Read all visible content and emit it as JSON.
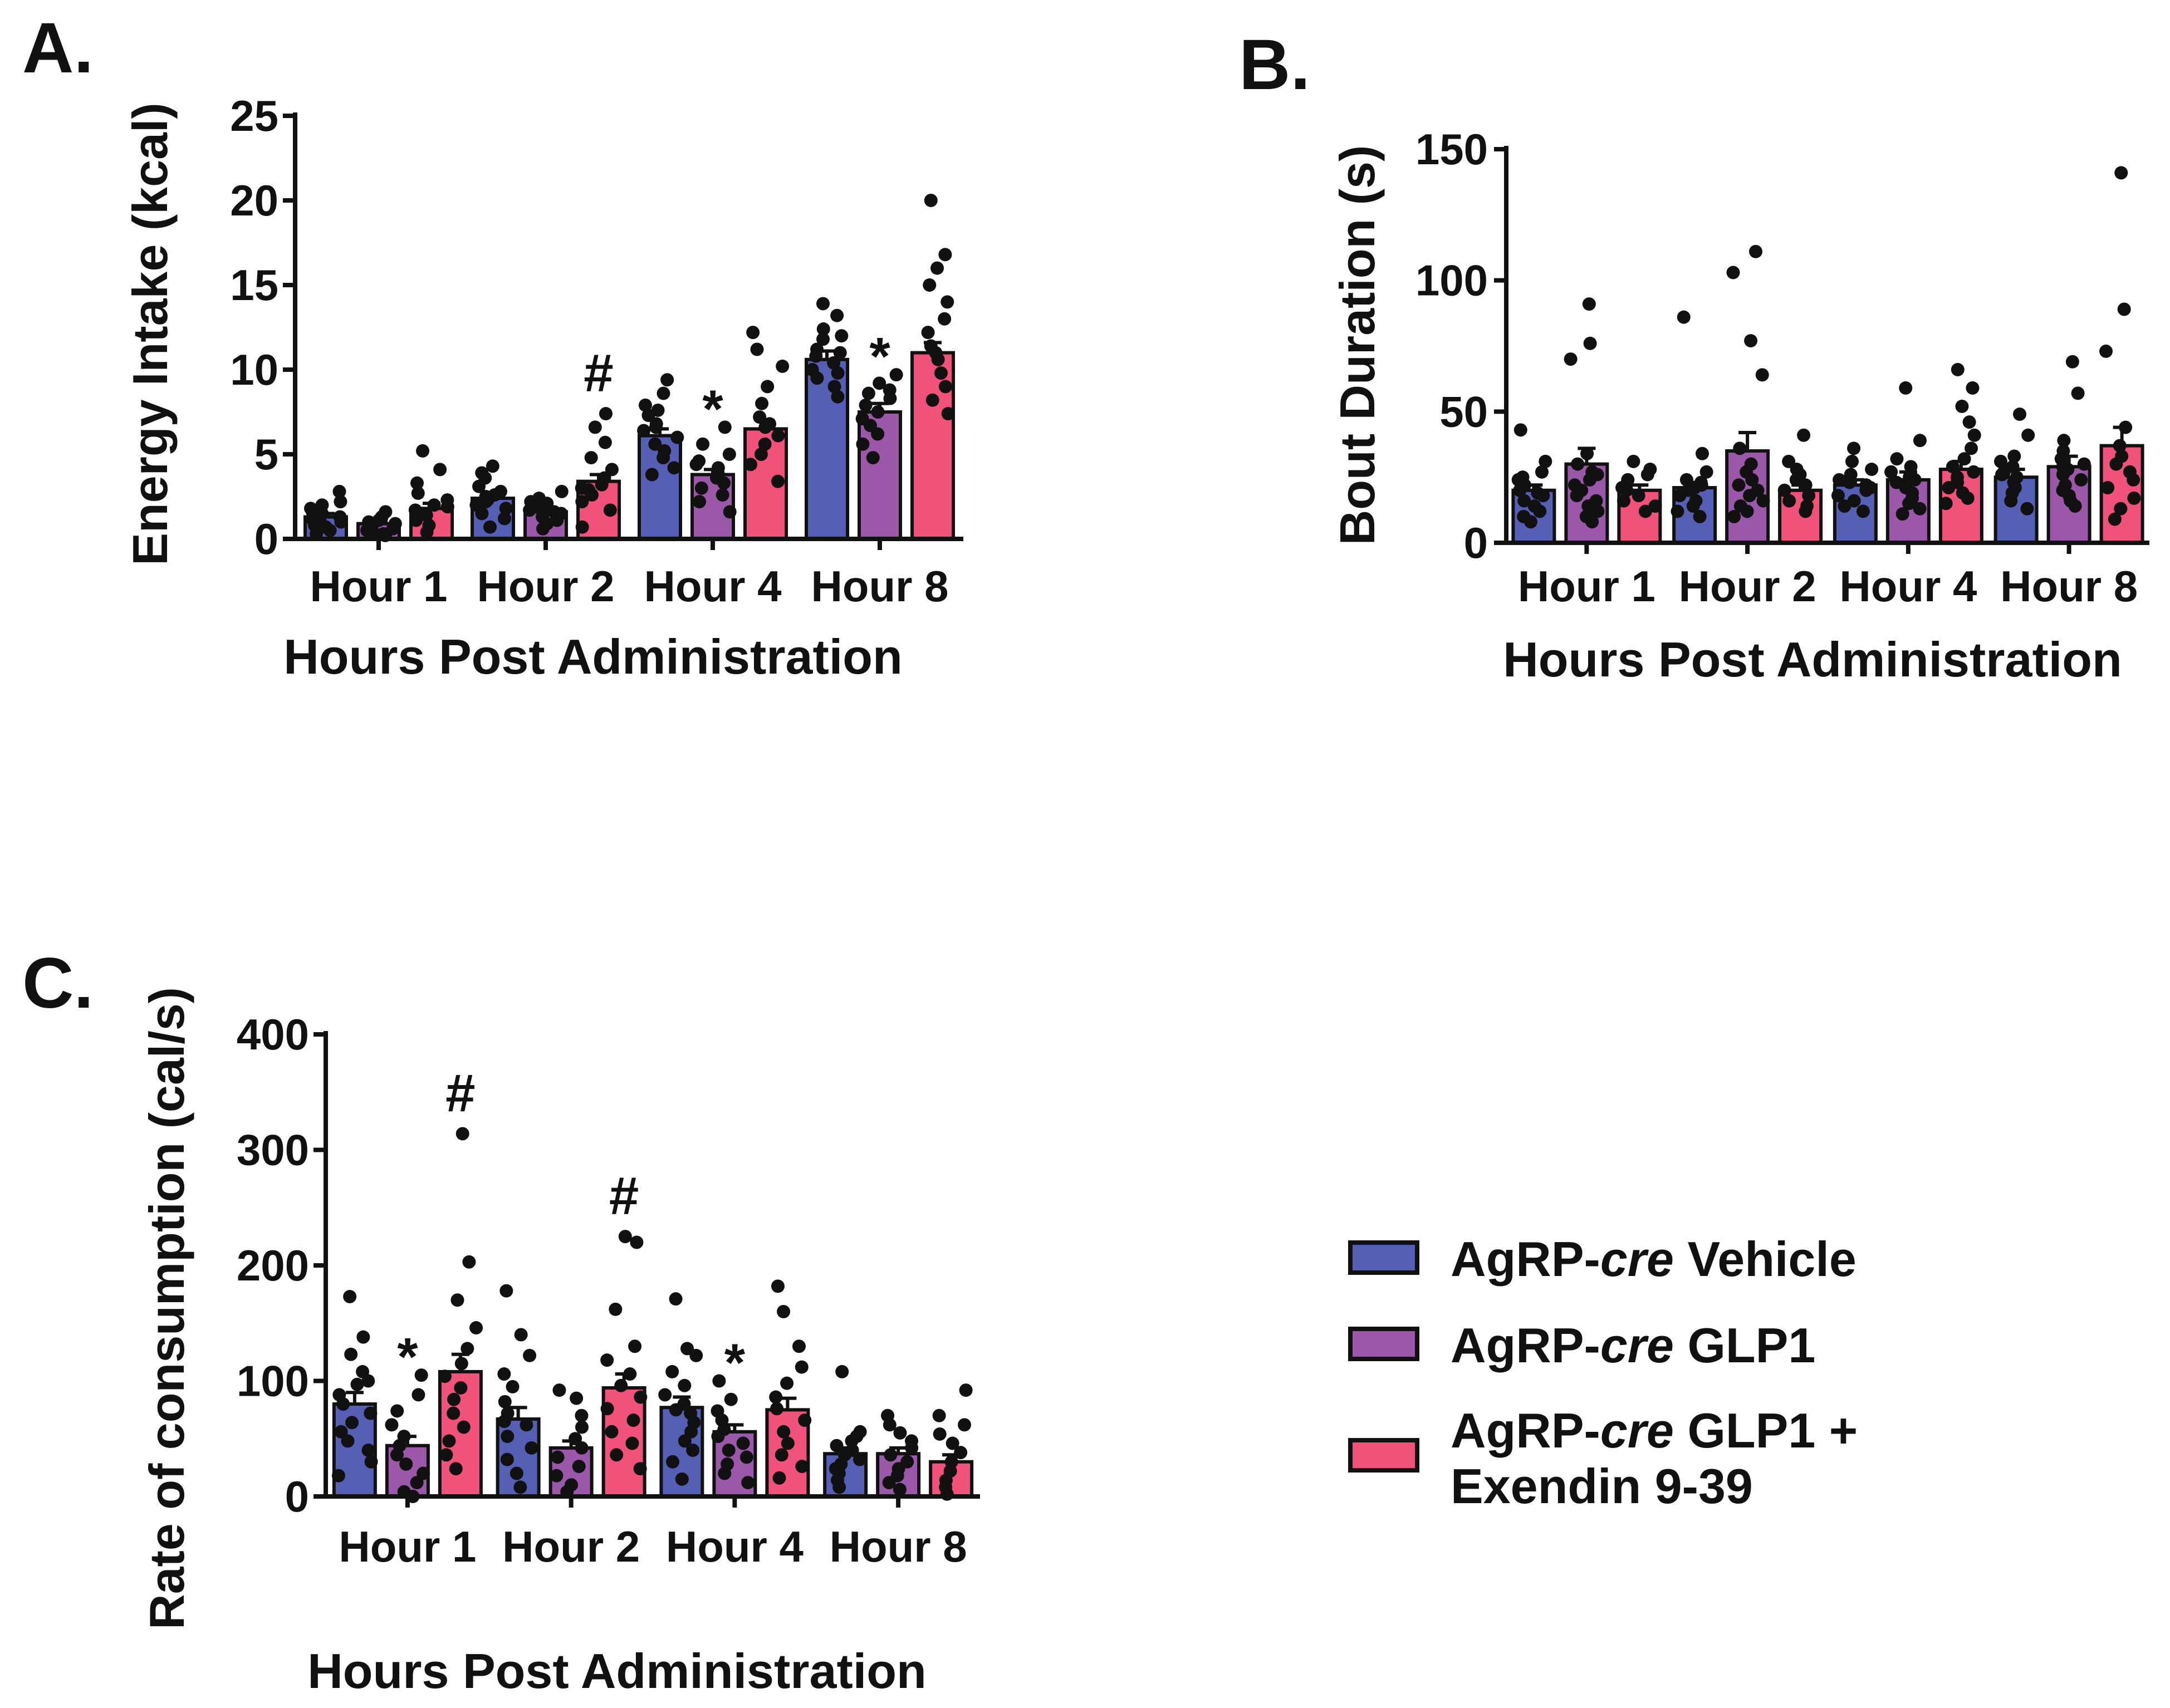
{
  "chart_data": [
    {
      "panel": "A.",
      "type": "bar",
      "categories": [
        "Hour 1",
        "Hour 2",
        "Hour 4",
        "Hour 8"
      ],
      "xlabel": "Hours Post Administration",
      "ylabel": "Energy Intake  (kcal)",
      "ylim": [
        0,
        25
      ],
      "yticks": [
        0,
        5,
        10,
        15,
        20,
        25
      ],
      "series": [
        {
          "name": "AgRP-cre Vehicle",
          "color": "#5560b4",
          "values": [
            1.3,
            2.4,
            6.1,
            10.6
          ],
          "sem": [
            0.2,
            0.3,
            0.4,
            0.5
          ],
          "points": [
            [
              2.8,
              2.2,
              1.8,
              1.5,
              1.3,
              1.1,
              0.9,
              0.7,
              0.5,
              0.3,
              1.6,
              1.0,
              2.0,
              0.8
            ],
            [
              4.3,
              3.6,
              3.1,
              2.8,
              2.5,
              2.2,
              2.0,
              1.8,
              1.5,
              1.2,
              0.7,
              3.9,
              2.6,
              2.3
            ],
            [
              9.4,
              8.6,
              7.9,
              7.3,
              6.8,
              6.4,
              6.0,
              5.6,
              5.2,
              4.8,
              4.2,
              3.8,
              6.6,
              7.6
            ],
            [
              13.9,
              13.2,
              12.4,
              11.8,
              11.2,
              10.8,
              10.4,
              10.0,
              9.5,
              9.0,
              8.4,
              12.0,
              11.0,
              9.8
            ]
          ]
        },
        {
          "name": "AgRP-cre GLP1",
          "color": "#9b58a8",
          "values": [
            0.9,
            1.6,
            3.8,
            7.5
          ],
          "sem": [
            0.15,
            0.2,
            0.3,
            0.5
          ],
          "points": [
            [
              1.6,
              1.3,
              1.1,
              0.9,
              0.8,
              0.7,
              0.5,
              0.4,
              0.3,
              0.2,
              1.0,
              0.6
            ],
            [
              2.8,
              2.4,
              2.1,
              1.9,
              1.7,
              1.5,
              1.3,
              1.1,
              0.9,
              0.6,
              2.2,
              1.6
            ],
            [
              6.6,
              5.6,
              5.0,
              4.6,
              4.2,
              3.9,
              3.6,
              3.3,
              3.0,
              2.6,
              2.2,
              1.6,
              4.4
            ],
            [
              9.7,
              9.2,
              8.8,
              8.3,
              7.9,
              7.5,
              7.1,
              6.7,
              6.2,
              5.6,
              4.8,
              8.6
            ]
          ]
        },
        {
          "name": "AgRP-cre GLP1 + Exendin 9-39",
          "color": "#f0527a",
          "values": [
            1.8,
            3.4,
            6.5,
            11.0
          ],
          "sem": [
            0.3,
            0.4,
            0.5,
            0.6
          ],
          "points": [
            [
              5.2,
              4.1,
              3.3,
              2.7,
              2.3,
              2.0,
              1.7,
              1.4,
              1.1,
              0.8,
              0.4,
              1.9
            ],
            [
              7.4,
              6.6,
              5.7,
              4.8,
              4.1,
              3.6,
              3.2,
              2.9,
              2.6,
              2.2,
              1.7,
              0.7,
              3.0
            ],
            [
              12.2,
              11.2,
              10.2,
              9.0,
              8.0,
              7.2,
              6.6,
              6.1,
              5.6,
              5.0,
              4.4,
              3.4,
              6.8
            ],
            [
              20.0,
              16.8,
              16.0,
              15.0,
              14.0,
              13.0,
              12.2,
              11.4,
              10.6,
              9.8,
              9.0,
              8.2,
              7.4,
              11.0
            ]
          ]
        }
      ],
      "annotations": [
        {
          "text": "#",
          "category": "Hour 2",
          "series": 2
        },
        {
          "text": "*",
          "category": "Hour 4",
          "series": 1
        },
        {
          "text": "*",
          "category": "Hour 8",
          "series": 1
        }
      ]
    },
    {
      "panel": "B.",
      "type": "bar",
      "categories": [
        "Hour 1",
        "Hour 2",
        "Hour 4",
        "Hour 8"
      ],
      "xlabel": "Hours Post Administration",
      "ylabel": "Bout Duration  (s)",
      "ylim": [
        0,
        150
      ],
      "yticks": [
        0,
        50,
        100,
        150
      ],
      "series": [
        {
          "name": "AgRP-cre Vehicle",
          "color": "#5560b4",
          "values": [
            20,
            21,
            22,
            25
          ],
          "sem": [
            2,
            2,
            2,
            3
          ],
          "points": [
            [
              43,
              31,
              27,
              24,
              22,
              20,
              18,
              16,
              14,
              12,
              10,
              8,
              25,
              19
            ],
            [
              86,
              34,
              27,
              24,
              22,
              20,
              18,
              16,
              14,
              12,
              10,
              23,
              21
            ],
            [
              36,
              31,
              28,
              26,
              24,
              22,
              20,
              18,
              16,
              14,
              12,
              23,
              21
            ],
            [
              49,
              41,
              33,
              31,
              29,
              27,
              25,
              23,
              21,
              19,
              16,
              13,
              26
            ]
          ]
        },
        {
          "name": "AgRP-cre GLP1",
          "color": "#9b58a8",
          "values": [
            30,
            35,
            24,
            29
          ],
          "sem": [
            6,
            7,
            3,
            4
          ],
          "points": [
            [
              91,
              76,
              70,
              34,
              30,
              27,
              24,
              22,
              20,
              18,
              16,
              14,
              12,
              10,
              8,
              26
            ],
            [
              111,
              103,
              77,
              64,
              36,
              30,
              27,
              24,
              22,
              20,
              18,
              16,
              14,
              12,
              10
            ],
            [
              59,
              39,
              32,
              29,
              27,
              25,
              23,
              21,
              19,
              17,
              15,
              13,
              11,
              24
            ],
            [
              69,
              57,
              39,
              35,
              32,
              30,
              28,
              26,
              24,
              22,
              20,
              18,
              16,
              14,
              29
            ]
          ]
        },
        {
          "name": "AgRP-cre GLP1 + Exendin 9-39",
          "color": "#f0527a",
          "values": [
            20,
            20,
            28,
            37
          ],
          "sem": [
            2,
            2,
            3,
            7
          ],
          "points": [
            [
              31,
              28,
              26,
              24,
              22,
              20,
              18,
              16,
              14,
              12,
              21
            ],
            [
              41,
              31,
              28,
              26,
              24,
              22,
              20,
              18,
              16,
              14,
              12
            ],
            [
              66,
              59,
              52,
              46,
              41,
              36,
              32,
              29,
              27,
              25,
              23,
              21,
              19,
              17,
              15
            ],
            [
              141,
              89,
              73,
              44,
              37,
              33,
              30,
              27,
              24,
              21,
              17,
              13,
              9
            ]
          ]
        }
      ],
      "annotations": []
    },
    {
      "panel": "C.",
      "type": "bar",
      "categories": [
        "Hour 1",
        "Hour 2",
        "Hour 4",
        "Hour 8"
      ],
      "xlabel": "Hours Post Administration",
      "ylabel": "Rate of consumption  (cal/s)",
      "ylim": [
        0,
        400
      ],
      "yticks": [
        0,
        100,
        200,
        300,
        400
      ],
      "series": [
        {
          "name": "AgRP-cre Vehicle",
          "color": "#5560b4",
          "values": [
            80,
            67,
            77,
            37
          ],
          "sem": [
            10,
            10,
            9,
            5
          ],
          "points": [
            [
              173,
              138,
              123,
              108,
              97,
              88,
              80,
              72,
              64,
              56,
              48,
              40,
              30,
              18,
              100
            ],
            [
              178,
              140,
              122,
              106,
              95,
              82,
              72,
              62,
              52,
              42,
              32,
              20,
              8,
              65
            ],
            [
              171,
              128,
              122,
              108,
              96,
              88,
              80,
              72,
              64,
              56,
              48,
              40,
              30,
              15,
              75
            ],
            [
              108,
              56,
              52,
              48,
              44,
              40,
              36,
              32,
              28,
              24,
              20,
              14,
              8
            ]
          ]
        },
        {
          "name": "AgRP-cre GLP1",
          "color": "#9b58a8",
          "values": [
            44,
            42,
            56,
            37
          ],
          "sem": [
            8,
            6,
            6,
            5
          ],
          "points": [
            [
              105,
              88,
              74,
              62,
              52,
              44,
              36,
              28,
              20,
              12,
              4,
              0
            ],
            [
              92,
              85,
              70,
              60,
              50,
              42,
              34,
              26,
              18,
              10,
              4
            ],
            [
              100,
              84,
              74,
              66,
              58,
              52,
              46,
              40,
              34,
              28,
              20,
              12
            ],
            [
              70,
              62,
              55,
              48,
              42,
              36,
              30,
              24,
              18,
              12,
              6
            ]
          ]
        },
        {
          "name": "AgRP-cre GLP1 + Exendin 9-39",
          "color": "#f0527a",
          "values": [
            108,
            94,
            75,
            30
          ],
          "sem": [
            15,
            12,
            10,
            6
          ],
          "points": [
            [
              314,
              203,
              170,
              146,
              128,
              115,
              104,
              94,
              84,
              72,
              60,
              48,
              36,
              24
            ],
            [
              225,
              220,
              162,
              130,
              118,
              106,
              96,
              86,
              76,
              66,
              56,
              46,
              36,
              24
            ],
            [
              182,
              160,
              130,
              112,
              98,
              86,
              76,
              66,
              56,
              46,
              36,
              26,
              16
            ],
            [
              92,
              70,
              62,
              54,
              46,
              38,
              30,
              22,
              14,
              8,
              2
            ]
          ]
        }
      ],
      "annotations": [
        {
          "text": "*",
          "category": "Hour 1",
          "series": 1
        },
        {
          "text": "#",
          "category": "Hour 1",
          "series": 2
        },
        {
          "text": "#",
          "category": "Hour 2",
          "series": 2
        },
        {
          "text": "*",
          "category": "Hour 4",
          "series": 1
        }
      ]
    }
  ],
  "legend": {
    "items": [
      {
        "prefix": "AgRP-",
        "italic": "cre",
        "suffix": " Vehicle",
        "color": "#5560b4"
      },
      {
        "prefix": "AgRP-",
        "italic": "cre",
        "suffix": " GLP1",
        "color": "#9b58a8"
      },
      {
        "prefix": "AgRP-",
        "italic": "cre",
        "suffix": " GLP1 +",
        "line2": "Exendin 9-39",
        "color": "#f0527a"
      }
    ]
  }
}
